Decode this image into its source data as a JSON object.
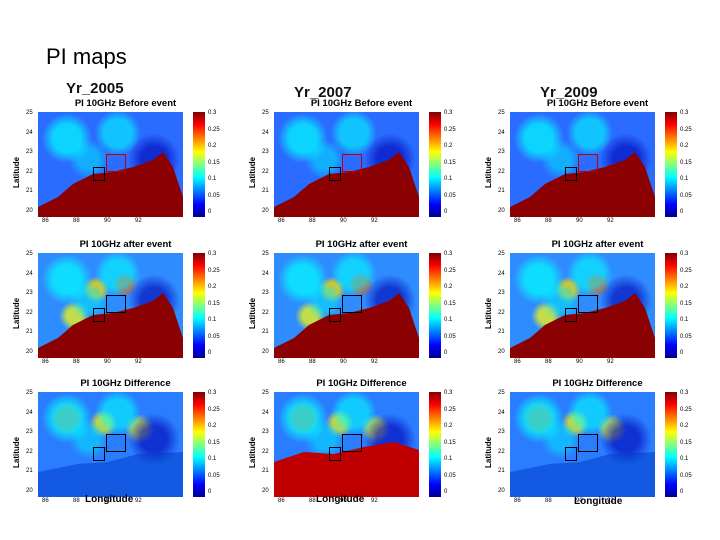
{
  "slide": {
    "title": "PI maps"
  },
  "years": [
    "Yr_2005",
    "Yr_2007",
    "Yr_2009"
  ],
  "row_titles": [
    "PI 10GHz Before event",
    "PI 10GHz after event",
    "PI 10GHz Difference"
  ],
  "axes": {
    "ylabel": "Latitude",
    "xlabel": "Longitude",
    "lat_ticks": [
      "25",
      "24",
      "23",
      "22",
      "21",
      "20"
    ],
    "lon_ticks": [
      "86",
      "88",
      "90",
      "92"
    ],
    "colorbar_ticks": [
      "0.3",
      "0.25",
      "0.2",
      "0.15",
      "0.1",
      "0.05",
      "0"
    ]
  },
  "colors": {
    "land": "#8b0000",
    "low": "#0000ff",
    "mid": "#00ffff",
    "high": "#ff0000"
  }
}
